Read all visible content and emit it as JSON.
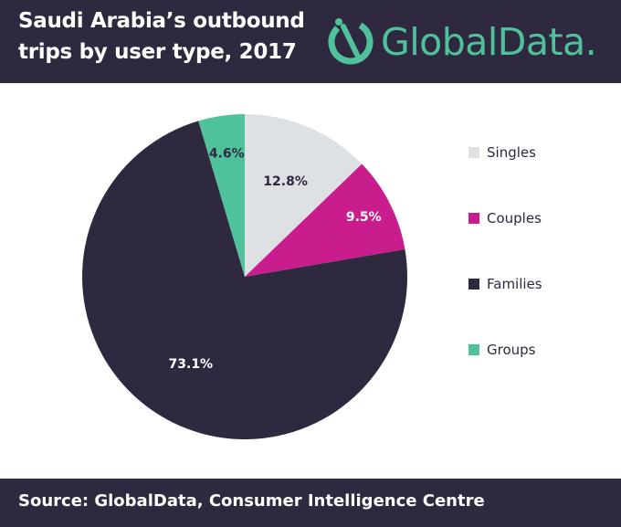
{
  "header": {
    "title_line1": "Saudi Arabia’s outbound",
    "title_line2": "trips by user type, 2017",
    "logo_text": "GlobalData."
  },
  "colors": {
    "background_dark": "#2f2940",
    "brand_green": "#4fc19b"
  },
  "chart_data": {
    "type": "pie",
    "title": "Saudi Arabia’s outbound trips by user type, 2017",
    "categories": [
      "Singles",
      "Couples",
      "Families",
      "Groups"
    ],
    "values": [
      12.8,
      9.5,
      73.1,
      4.6
    ],
    "labels": [
      "12.8%",
      "9.5%",
      "73.1%",
      "4.6%"
    ],
    "colors": [
      "#dde1e3",
      "#c91d8d",
      "#2f2940",
      "#4fc19b"
    ],
    "label_colors": [
      "#2f2940",
      "#ffffff",
      "#ffffff",
      "#2f2940"
    ],
    "start": "12 o'clock",
    "direction": "clockwise",
    "legend_position": "right"
  },
  "footer": {
    "source": "Source:  GlobalData, Consumer Intelligence Centre"
  }
}
